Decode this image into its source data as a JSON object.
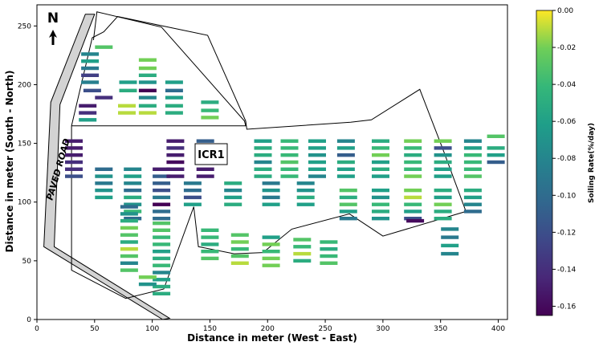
{
  "chart_data": {
    "type": "heatmap",
    "title": "",
    "xlabel": "Distance in meter (West - East)",
    "ylabel": "Distance in meter (South - North)",
    "xlim": [
      0,
      408
    ],
    "ylim": [
      0,
      268
    ],
    "xticks": [
      0,
      50,
      100,
      150,
      200,
      250,
      300,
      350,
      400
    ],
    "yticks": [
      0,
      50,
      100,
      150,
      200,
      250
    ],
    "grid": false,
    "colorbar": {
      "label": "Soiling Rate(%/day)",
      "range": [
        -0.165,
        0.0
      ],
      "ticks": [
        0.0,
        -0.02,
        -0.04,
        -0.06,
        -0.08,
        -0.1,
        -0.12,
        -0.14,
        -0.16
      ],
      "tick_labels": [
        "0.00",
        "-0.02",
        "-0.04",
        "-0.06",
        "-0.08",
        "-0.10",
        "-0.12",
        "-0.14",
        "-0.16"
      ],
      "colormap": "viridis"
    },
    "annotations": {
      "north": "N",
      "road": "PAVED   ROAD",
      "station": "ICR1"
    },
    "site_boundary": [
      [
        45,
        5
      ],
      [
        45,
        220
      ],
      [
        75,
        232
      ],
      [
        110,
        262
      ],
      [
        150,
        240
      ],
      [
        262,
        120
      ],
      [
        322,
        80
      ],
      [
        382,
        132
      ],
      [
        408,
        180
      ],
      [
        350,
        180
      ],
      [
        255,
        168
      ],
      [
        175,
        168
      ],
      [
        110,
        163
      ],
      [
        73,
        163
      ],
      [
        38,
        133
      ],
      [
        37,
        9
      ],
      [
        345,
        5
      ]
    ],
    "road_polygon": [
      [
        42,
        260
      ],
      [
        50,
        260
      ],
      [
        20,
        183
      ],
      [
        15,
        62
      ],
      [
        115,
        1
      ],
      [
        109,
        0
      ],
      [
        6,
        62
      ],
      [
        12,
        185
      ]
    ],
    "inner_boundary": [
      [
        30,
        165
      ],
      [
        48,
        240
      ],
      [
        58,
        245
      ],
      [
        70,
        258
      ],
      [
        148,
        242
      ],
      [
        181,
        169
      ],
      [
        182,
        162
      ],
      [
        272,
        168
      ],
      [
        290,
        170
      ],
      [
        332,
        196
      ],
      [
        352,
        145
      ],
      [
        372,
        92
      ],
      [
        300,
        71
      ],
      [
        271,
        90
      ],
      [
        221,
        77
      ],
      [
        196,
        57
      ],
      [
        171,
        56
      ],
      [
        140,
        62
      ],
      [
        136,
        96
      ],
      [
        110,
        26
      ],
      [
        77,
        18
      ],
      [
        30,
        42
      ],
      [
        30,
        160
      ]
    ],
    "panels": [
      [
        58,
        232,
        -0.03
      ],
      [
        46,
        226,
        -0.08
      ],
      [
        46,
        220,
        -0.06
      ],
      [
        46,
        214,
        -0.09
      ],
      [
        46,
        208,
        -0.13
      ],
      [
        46,
        202,
        -0.085
      ],
      [
        48,
        195,
        -0.12
      ],
      [
        58,
        189,
        -0.14
      ],
      [
        44,
        182,
        -0.15
      ],
      [
        44,
        176,
        -0.14
      ],
      [
        44,
        170,
        -0.06
      ],
      [
        96,
        221,
        -0.02
      ],
      [
        96,
        214,
        -0.02
      ],
      [
        96,
        208,
        -0.05
      ],
      [
        96,
        202,
        -0.07
      ],
      [
        96,
        195,
        -0.17
      ],
      [
        96,
        189,
        -0.08
      ],
      [
        96,
        182,
        -0.05
      ],
      [
        96,
        176,
        -0.01
      ],
      [
        79,
        202,
        -0.06
      ],
      [
        79,
        195,
        -0.05
      ],
      [
        78,
        182,
        -0.01
      ],
      [
        78,
        176,
        -0.01
      ],
      [
        119,
        202,
        -0.06
      ],
      [
        119,
        195,
        -0.1
      ],
      [
        119,
        189,
        -0.06
      ],
      [
        119,
        182,
        -0.05
      ],
      [
        119,
        176,
        -0.05
      ],
      [
        150,
        185,
        -0.05
      ],
      [
        150,
        178,
        -0.04
      ],
      [
        150,
        172,
        -0.02
      ],
      [
        32,
        152,
        -0.15
      ],
      [
        32,
        146,
        -0.15
      ],
      [
        32,
        140,
        -0.15
      ],
      [
        32,
        134,
        -0.14
      ],
      [
        32,
        128,
        -0.14
      ],
      [
        32,
        122,
        -0.12
      ],
      [
        58,
        128,
        -0.1
      ],
      [
        58,
        122,
        -0.07
      ],
      [
        58,
        116,
        -0.09
      ],
      [
        58,
        110,
        -0.07
      ],
      [
        58,
        104,
        -0.06
      ],
      [
        83,
        128,
        -0.08
      ],
      [
        83,
        122,
        -0.06
      ],
      [
        83,
        116,
        -0.08
      ],
      [
        83,
        110,
        -0.1
      ],
      [
        83,
        104,
        -0.05
      ],
      [
        83,
        98,
        -0.07
      ],
      [
        83,
        92,
        -0.04
      ],
      [
        83,
        86,
        -0.1
      ],
      [
        108,
        128,
        -0.15
      ],
      [
        108,
        122,
        -0.11
      ],
      [
        108,
        116,
        -0.11
      ],
      [
        108,
        110,
        -0.12
      ],
      [
        108,
        104,
        -0.09
      ],
      [
        108,
        98,
        -0.17
      ],
      [
        108,
        92,
        -0.1
      ],
      [
        108,
        86,
        -0.1
      ],
      [
        135,
        116,
        -0.09
      ],
      [
        135,
        110,
        -0.1
      ],
      [
        135,
        104,
        -0.12
      ],
      [
        135,
        98,
        -0.06
      ],
      [
        146,
        152,
        -0.11
      ],
      [
        146,
        146,
        -0.12
      ],
      [
        146,
        140,
        -0.15
      ],
      [
        146,
        134,
        -0.15
      ],
      [
        146,
        128,
        -0.15
      ],
      [
        146,
        122,
        -0.15
      ],
      [
        120,
        152,
        -0.15
      ],
      [
        120,
        146,
        -0.14
      ],
      [
        120,
        140,
        -0.15
      ],
      [
        120,
        134,
        -0.16
      ],
      [
        120,
        128,
        -0.15
      ],
      [
        120,
        122,
        -0.15
      ],
      [
        170,
        116,
        -0.05
      ],
      [
        170,
        110,
        -0.08
      ],
      [
        170,
        104,
        -0.06
      ],
      [
        170,
        98,
        -0.05
      ],
      [
        203,
        116,
        -0.09
      ],
      [
        203,
        110,
        -0.07
      ],
      [
        203,
        104,
        -0.09
      ],
      [
        203,
        98,
        -0.06
      ],
      [
        233,
        116,
        -0.08
      ],
      [
        233,
        110,
        -0.07
      ],
      [
        233,
        104,
        -0.05
      ],
      [
        233,
        98,
        -0.06
      ],
      [
        196,
        152,
        -0.06
      ],
      [
        196,
        146,
        -0.05
      ],
      [
        196,
        140,
        -0.05
      ],
      [
        196,
        134,
        -0.08
      ],
      [
        196,
        128,
        -0.05
      ],
      [
        196,
        122,
        -0.05
      ],
      [
        219,
        152,
        -0.04
      ],
      [
        219,
        146,
        -0.04
      ],
      [
        219,
        140,
        -0.04
      ],
      [
        219,
        134,
        -0.03
      ],
      [
        219,
        128,
        -0.04
      ],
      [
        219,
        122,
        -0.04
      ],
      [
        243,
        152,
        -0.06
      ],
      [
        243,
        146,
        -0.06
      ],
      [
        243,
        140,
        -0.07
      ],
      [
        243,
        134,
        -0.06
      ],
      [
        243,
        128,
        -0.06
      ],
      [
        243,
        122,
        -0.08
      ],
      [
        268,
        152,
        -0.08
      ],
      [
        268,
        146,
        -0.06
      ],
      [
        268,
        140,
        -0.11
      ],
      [
        268,
        134,
        -0.05
      ],
      [
        268,
        128,
        -0.06
      ],
      [
        268,
        122,
        -0.06
      ],
      [
        298,
        152,
        -0.05
      ],
      [
        298,
        146,
        -0.04
      ],
      [
        298,
        140,
        -0.02
      ],
      [
        298,
        134,
        -0.06
      ],
      [
        298,
        128,
        -0.05
      ],
      [
        298,
        122,
        -0.06
      ],
      [
        326,
        152,
        -0.02
      ],
      [
        326,
        146,
        -0.04
      ],
      [
        326,
        140,
        -0.05
      ],
      [
        326,
        134,
        -0.04
      ],
      [
        326,
        128,
        -0.04
      ],
      [
        326,
        122,
        -0.02
      ],
      [
        352,
        152,
        -0.02
      ],
      [
        352,
        146,
        -0.12
      ],
      [
        352,
        140,
        -0.07
      ],
      [
        352,
        134,
        -0.05
      ],
      [
        352,
        128,
        -0.06
      ],
      [
        352,
        122,
        -0.06
      ],
      [
        378,
        152,
        -0.08
      ],
      [
        378,
        146,
        -0.06
      ],
      [
        378,
        140,
        -0.04
      ],
      [
        378,
        134,
        -0.04
      ],
      [
        378,
        128,
        -0.04
      ],
      [
        378,
        122,
        -0.03
      ],
      [
        398,
        156,
        -0.03
      ],
      [
        398,
        146,
        -0.05
      ],
      [
        398,
        140,
        -0.06
      ],
      [
        398,
        134,
        -0.11
      ],
      [
        270,
        110,
        -0.03
      ],
      [
        270,
        104,
        -0.05
      ],
      [
        270,
        98,
        -0.03
      ],
      [
        270,
        92,
        -0.06
      ],
      [
        270,
        86,
        -0.09
      ],
      [
        298,
        110,
        -0.06
      ],
      [
        298,
        104,
        -0.07
      ],
      [
        298,
        98,
        -0.04
      ],
      [
        298,
        92,
        -0.05
      ],
      [
        298,
        86,
        -0.07
      ],
      [
        326,
        110,
        -0.02
      ],
      [
        326,
        104,
        -0.01
      ],
      [
        326,
        98,
        -0.04
      ],
      [
        326,
        92,
        -0.06
      ],
      [
        326,
        86,
        -0.12
      ],
      [
        352,
        110,
        -0.05
      ],
      [
        352,
        104,
        -0.06
      ],
      [
        352,
        98,
        -0.02
      ],
      [
        352,
        92,
        -0.05
      ],
      [
        352,
        86,
        -0.05
      ],
      [
        378,
        110,
        -0.05
      ],
      [
        378,
        104,
        -0.06
      ],
      [
        378,
        98,
        -0.08
      ],
      [
        378,
        92,
        -0.1
      ],
      [
        328,
        84,
        -0.16
      ],
      [
        358,
        77,
        -0.08
      ],
      [
        358,
        70,
        -0.09
      ],
      [
        358,
        63,
        -0.06
      ],
      [
        358,
        56,
        -0.08
      ],
      [
        80,
        96,
        -0.1
      ],
      [
        80,
        90,
        -0.07
      ],
      [
        80,
        84,
        -0.05
      ],
      [
        80,
        78,
        -0.02
      ],
      [
        80,
        72,
        -0.03
      ],
      [
        80,
        66,
        -0.05
      ],
      [
        80,
        60,
        -0.01
      ],
      [
        80,
        54,
        -0.03
      ],
      [
        80,
        48,
        -0.08
      ],
      [
        80,
        42,
        -0.03
      ],
      [
        108,
        82,
        -0.03
      ],
      [
        108,
        76,
        -0.03
      ],
      [
        108,
        70,
        -0.04
      ],
      [
        108,
        64,
        -0.04
      ],
      [
        108,
        58,
        -0.06
      ],
      [
        108,
        52,
        -0.05
      ],
      [
        108,
        46,
        -0.04
      ],
      [
        108,
        40,
        -0.08
      ],
      [
        108,
        34,
        -0.06
      ],
      [
        108,
        28,
        -0.05
      ],
      [
        108,
        22,
        -0.05
      ],
      [
        96,
        36,
        -0.02
      ],
      [
        96,
        30,
        -0.07
      ],
      [
        150,
        76,
        -0.04
      ],
      [
        150,
        70,
        -0.04
      ],
      [
        150,
        64,
        -0.05
      ],
      [
        150,
        58,
        -0.04
      ],
      [
        150,
        52,
        -0.03
      ],
      [
        176,
        72,
        -0.03
      ],
      [
        176,
        66,
        -0.02
      ],
      [
        176,
        60,
        -0.04
      ],
      [
        176,
        54,
        -0.03
      ],
      [
        176,
        48,
        -0.01
      ],
      [
        203,
        70,
        -0.06
      ],
      [
        203,
        64,
        -0.02
      ],
      [
        203,
        58,
        -0.04
      ],
      [
        203,
        52,
        -0.02
      ],
      [
        203,
        46,
        -0.02
      ],
      [
        230,
        68,
        -0.03
      ],
      [
        230,
        62,
        -0.04
      ],
      [
        230,
        56,
        -0.01
      ],
      [
        230,
        50,
        -0.05
      ],
      [
        253,
        66,
        -0.04
      ],
      [
        253,
        60,
        -0.05
      ],
      [
        253,
        54,
        -0.04
      ],
      [
        253,
        48,
        -0.03
      ]
    ]
  }
}
